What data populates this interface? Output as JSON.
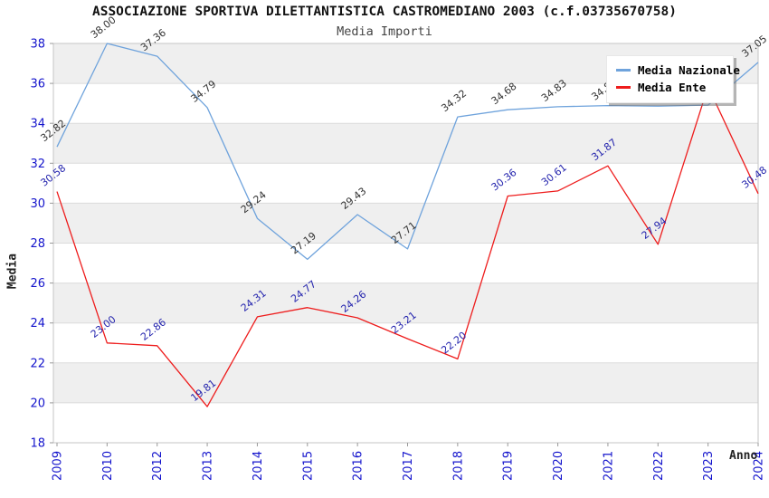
{
  "title": "ASSOCIAZIONE SPORTIVA DILETTANTISTICA CASTROMEDIANO 2003 (c.f.03735670758)",
  "subtitle": "Media Importi",
  "chart_data": {
    "type": "line",
    "title": "ASSOCIAZIONE SPORTIVA DILETTANTISTICA CASTROMEDIANO 2003 (c.f.03735670758)",
    "subtitle": "Media Importi",
    "xlabel": "Anno",
    "ylabel": "Media",
    "categories": [
      "2009",
      "2010",
      "2012",
      "2013",
      "2014",
      "2015",
      "2016",
      "2017",
      "2018",
      "2019",
      "2020",
      "2021",
      "2022",
      "2023",
      "2024"
    ],
    "series": [
      {
        "name": "Media Nazionale",
        "color": "#6FA3DC",
        "label_color": "#333333",
        "values": [
          32.82,
          38.0,
          37.36,
          34.79,
          29.24,
          27.19,
          29.43,
          27.71,
          34.32,
          34.68,
          34.83,
          34.89,
          34.86,
          34.91,
          37.05
        ]
      },
      {
        "name": "Media Ente",
        "color": "#EE1C1C",
        "label_color": "#2525AE",
        "values": [
          30.58,
          23.0,
          22.86,
          19.81,
          24.31,
          24.77,
          24.26,
          23.21,
          22.2,
          30.36,
          30.61,
          31.87,
          27.94,
          35.84,
          30.48
        ]
      }
    ],
    "ylim": [
      18,
      38
    ],
    "yticks": [
      18,
      20,
      22,
      24,
      26,
      28,
      30,
      32,
      34,
      36,
      38
    ],
    "grid": "horizontal-bands",
    "legend_position": "top-right",
    "label_decimals": 2
  },
  "style_colors": {
    "axis_text": "#1414CC",
    "band_fill": "#EFEFEF",
    "gridline": "#DBDBDB",
    "plot_border": "#C6C6C6",
    "tick_mark": "#999999"
  }
}
